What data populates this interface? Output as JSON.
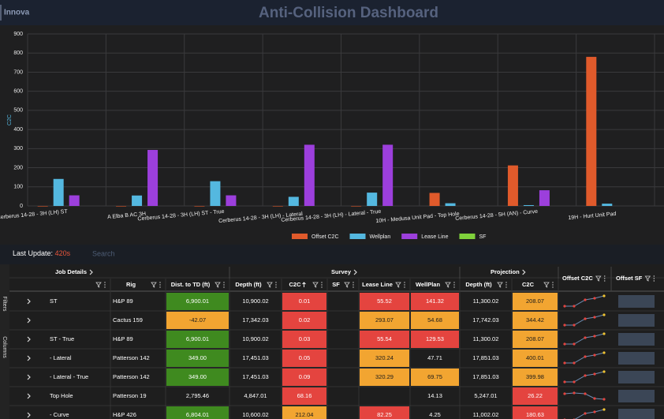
{
  "header": {
    "brand": "Innova",
    "title": "Anti-Collision Dashboard"
  },
  "chart_data": {
    "type": "bar",
    "y_label": "C2C",
    "categories": [
      "Cerberus 14-28 - 3H (LH) ST",
      "A Elba B AC 3H",
      "Cerberus 14-28 - 3H (LH) ST - True",
      "Cerberus 14-28 - 3H (LH) - Lateral",
      "Cerberus 14-28 - 3H (LH) - Lateral - True",
      "10H - Medusa Unit Pad - Top Hole",
      "Cerberus 14-28 - 5H (AN) - Curve",
      "19H - Hurt Unit Pad"
    ],
    "series": [
      {
        "name": "Offset C2C",
        "color": "#e05a2b",
        "values": [
          0.01,
          0.02,
          0.03,
          0.05,
          0.09,
          68.16,
          212.04,
          780
        ]
      },
      {
        "name": "Wellplan",
        "color": "#54b8e0",
        "values": [
          141.32,
          54.68,
          129.53,
          47.71,
          69.75,
          14.13,
          4.25,
          12
        ]
      },
      {
        "name": "Lease Line",
        "color": "#9c3fdc",
        "values": [
          55.52,
          293.07,
          55.54,
          320.24,
          320.29,
          null,
          82.25,
          null
        ]
      },
      {
        "name": "SF",
        "color": "#7fd13b",
        "values": [
          null,
          null,
          null,
          null,
          null,
          null,
          null,
          null
        ]
      }
    ],
    "ylim": [
      0,
      900
    ],
    "yticks": [
      0,
      100,
      200,
      300,
      400,
      500,
      600,
      700,
      800,
      900
    ],
    "grid": true,
    "legend": "bottom"
  },
  "status": {
    "label": "Last Update:",
    "age": "420s",
    "search": "Search"
  },
  "side_tabs": [
    "Filters",
    "Columns"
  ],
  "table": {
    "groups": [
      "Job Details",
      "Survey",
      "Projection",
      "Offset C2C",
      "Offset SF"
    ],
    "columns": [
      null,
      "Rig",
      "Dist. to TD (ft)",
      "Depth (ft)",
      "C2C",
      "SF",
      "Lease Line",
      "WellPlan",
      "Depth (ft)",
      "C2C"
    ],
    "rows": [
      [
        "ST",
        "H&P 89",
        "6,900.01",
        "10,900.02",
        "0.01",
        null,
        "55.52",
        "141.32",
        "11,300.02",
        "208.07"
      ],
      [
        null,
        "Cactus 159",
        "-42.07",
        "17,342.03",
        "0.02",
        null,
        "293.07",
        "54.68",
        "17,742.03",
        "344.42"
      ],
      [
        "ST - True",
        "H&P 89",
        "6,900.01",
        "10,900.02",
        "0.03",
        null,
        "55.54",
        "129.53",
        "11,300.02",
        "208.07"
      ],
      [
        "- Lateral",
        "Patterson 142",
        "349.00",
        "17,451.03",
        "0.05",
        null,
        "320.24",
        "47.71",
        "17,851.03",
        "400.01"
      ],
      [
        "- Lateral - True",
        "Patterson 142",
        "349.00",
        "17,451.03",
        "0.09",
        null,
        "320.29",
        "69.75",
        "17,851.03",
        "399.98"
      ],
      [
        "Top Hole",
        "Patterson 19",
        "2,795.46",
        "4,847.01",
        "68.16",
        null,
        null,
        "14.13",
        "5,247.01",
        "26.22"
      ],
      [
        "- Curve",
        "H&P 426",
        "6,804.01",
        "10,600.02",
        "212.04",
        null,
        "82.25",
        "4.25",
        "11,002.02",
        "180.63"
      ]
    ],
    "cell_colors": [
      [
        null,
        null,
        "#3f8a1f",
        null,
        "#e4443f",
        null,
        "#e4443f",
        "#e4443f",
        null,
        "#f2a531"
      ],
      [
        null,
        null,
        "#f2a531",
        null,
        "#e4443f",
        null,
        "#f2a531",
        "#f2a531",
        null,
        "#f2a531"
      ],
      [
        null,
        null,
        "#3f8a1f",
        null,
        "#e4443f",
        null,
        "#e4443f",
        "#e4443f",
        null,
        "#f2a531"
      ],
      [
        null,
        null,
        "#3f8a1f",
        null,
        "#e4443f",
        null,
        "#f2a531",
        null,
        null,
        "#f2a531"
      ],
      [
        null,
        null,
        "#3f8a1f",
        null,
        "#e4443f",
        null,
        "#f2a531",
        "#f2a531",
        null,
        "#f2a531"
      ],
      [
        null,
        null,
        null,
        null,
        "#e4443f",
        null,
        null,
        null,
        null,
        "#e4443f"
      ],
      [
        null,
        null,
        "#3f8a1f",
        null,
        "#f2a531",
        null,
        "#e4443f",
        null,
        null,
        "#e4443f"
      ]
    ]
  }
}
